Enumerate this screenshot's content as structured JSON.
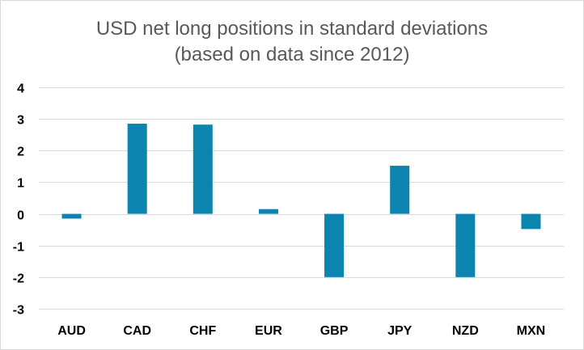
{
  "chart_data": {
    "type": "bar",
    "title": "USD net long positions in standard deviations",
    "subtitle": "(based on data since 2012)",
    "categories": [
      "AUD",
      "CAD",
      "CHF",
      "EUR",
      "GBP",
      "JPY",
      "NZD",
      "MXN"
    ],
    "values": [
      -0.15,
      2.85,
      2.82,
      0.15,
      -2.0,
      1.52,
      -2.0,
      -0.48
    ],
    "ylim": [
      -3,
      4
    ],
    "yticks": [
      4,
      3,
      2,
      1,
      0,
      -1,
      -2,
      -3
    ],
    "xlabel": "",
    "ylabel": "",
    "grid": true,
    "bar_color": "#0b84b0",
    "grid_color": "#d9d9d9"
  }
}
